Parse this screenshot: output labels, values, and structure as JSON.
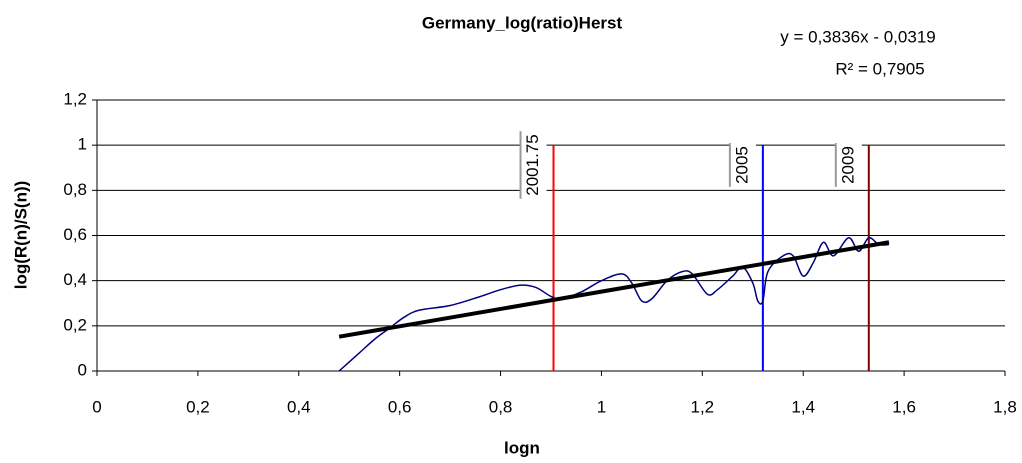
{
  "chart_data": {
    "type": "line",
    "title": "Germany_log(ratio)Herst",
    "xlabel": "logn",
    "ylabel": "log(R(n)/S(n))",
    "annotations": [
      "y = 0,3836x - 0,0319",
      "R² = 0,7905"
    ],
    "xlim": [
      0,
      1.8
    ],
    "xticks": [
      0,
      {
        "value": 0.2,
        "label": "0,2"
      },
      {
        "value": 0.4,
        "label": "0,4"
      },
      {
        "value": 0.6,
        "label": "0,6"
      },
      {
        "value": 0.8,
        "label": "0,8"
      },
      1,
      {
        "value": 1.2,
        "label": "1,2"
      },
      {
        "value": 1.4,
        "label": "1,4"
      },
      {
        "value": 1.6,
        "label": "1,6"
      },
      {
        "value": 1.8,
        "label": "1,8"
      }
    ],
    "ylim": [
      0,
      1.2
    ],
    "yticks": [
      0,
      {
        "value": 0.2,
        "label": "0,2"
      },
      {
        "value": 0.4,
        "label": "0,4"
      },
      {
        "value": 0.6,
        "label": "0,6"
      },
      {
        "value": 0.8,
        "label": "0,8"
      },
      1,
      {
        "value": 1.2,
        "label": "1,2"
      }
    ],
    "grid": true,
    "series": [
      {
        "color": "#000080",
        "smooth": true,
        "x": [
          0.48,
          0.52,
          0.55,
          0.58,
          0.61,
          0.64,
          0.7,
          0.76,
          0.8,
          0.84,
          0.87,
          0.9,
          0.92,
          0.96,
          1.0,
          1.04,
          1.06,
          1.08,
          1.1,
          1.13,
          1.16,
          1.18,
          1.21,
          1.23,
          1.26,
          1.28,
          1.3,
          1.31,
          1.32,
          1.33,
          1.36,
          1.38,
          1.4,
          1.42,
          1.44,
          1.46,
          1.49,
          1.51,
          1.53,
          1.55,
          1.57
        ],
        "values": [
          0.0,
          0.08,
          0.14,
          0.19,
          0.24,
          0.27,
          0.29,
          0.33,
          0.36,
          0.38,
          0.37,
          0.33,
          0.32,
          0.35,
          0.4,
          0.43,
          0.39,
          0.31,
          0.32,
          0.4,
          0.44,
          0.43,
          0.34,
          0.36,
          0.42,
          0.46,
          0.39,
          0.31,
          0.31,
          0.44,
          0.51,
          0.51,
          0.42,
          0.48,
          0.57,
          0.51,
          0.59,
          0.53,
          0.59,
          0.56,
          0.56
        ]
      },
      {
        "color": "#000000",
        "width": 4,
        "x": [
          0.48,
          1.57
        ],
        "values": [
          0.152,
          0.57
        ]
      }
    ],
    "vlines": [
      {
        "x": 0.905,
        "label": "2001.75",
        "color": "#ff0000",
        "ylim": [
          0,
          1
        ]
      },
      {
        "x": 1.32,
        "label": "2005",
        "color": "#0000ff",
        "ylim": [
          0,
          1
        ]
      },
      {
        "x": 1.53,
        "label": "2009",
        "color": "#800000",
        "ylim": [
          0,
          1
        ]
      }
    ]
  }
}
